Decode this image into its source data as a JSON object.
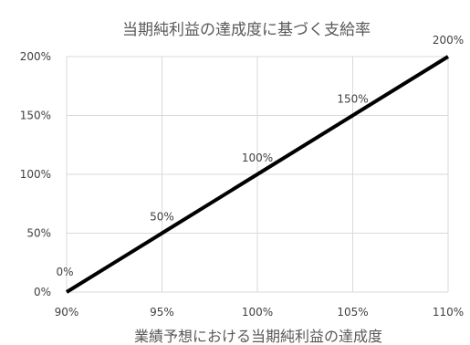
{
  "chart_data": {
    "type": "line",
    "title": "当期純利益の達成度に基づく支給率",
    "xlabel": "業績予想における当期純利益の達成度",
    "ylabel": "",
    "x": [
      90,
      95,
      100,
      105,
      110
    ],
    "x_tick_labels": [
      "90%",
      "95%",
      "100%",
      "105%",
      "110%"
    ],
    "xlim": [
      90,
      110
    ],
    "y_tick_values": [
      0,
      50,
      100,
      150,
      200
    ],
    "y_tick_labels": [
      "0%",
      "50%",
      "100%",
      "150%",
      "200%"
    ],
    "ylim": [
      0,
      200
    ],
    "grid": true,
    "legend": "none",
    "series": [
      {
        "values": [
          0,
          50,
          100,
          150,
          200
        ],
        "data_labels": [
          "0%",
          "50%",
          "100%",
          "150%",
          "200%"
        ],
        "color": "#000000"
      }
    ]
  }
}
